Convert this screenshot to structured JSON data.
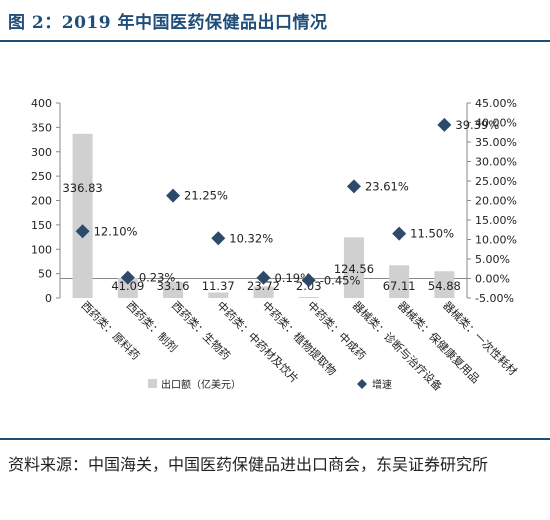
{
  "figure": {
    "title": "图 2：2019 年中国医药保健品出口情况"
  },
  "source_note": "资料来源：中国海关，中国医药保健品进出口商会，东吴证券研究所",
  "colors": {
    "title": "#1f4e79",
    "bar": "#d0d0d0",
    "marker": "#2e4a6b",
    "axis": "#888888",
    "text": "#222222"
  },
  "chart_data": {
    "type": "bar",
    "categories": [
      "西药类：原料药",
      "西药类：制剂",
      "西药类：生物药",
      "中药类：中药材及饮片",
      "中药类：植物提取物",
      "中药类：中成药",
      "器械类：诊断与治疗设备",
      "器械类：保健康复用品",
      "器械类：一次性耗材"
    ],
    "series": [
      {
        "name": "出口额（亿美元）",
        "type": "bar",
        "axis": "left",
        "values": [
          336.83,
          41.09,
          33.16,
          11.37,
          23.72,
          2.03,
          124.56,
          67.11,
          54.88
        ],
        "labels": [
          "336.83",
          "41.09",
          "33.16",
          "11.37",
          "23.72",
          "2.03",
          "124.56",
          "67.11",
          "54.88"
        ]
      },
      {
        "name": "增速",
        "type": "scatter",
        "marker": "diamond",
        "axis": "right",
        "values": [
          12.1,
          0.23,
          21.25,
          10.32,
          0.19,
          -0.45,
          23.61,
          11.5,
          39.39
        ],
        "labels": [
          "12.10%",
          "0.23%",
          "21.25%",
          "10.32%",
          "0.19%",
          "-0.45%",
          "23.61%",
          "11.50%",
          "39.39%"
        ]
      }
    ],
    "y_left": {
      "ylim": [
        0,
        400
      ],
      "ticks": [
        "0",
        "50",
        "100",
        "150",
        "200",
        "250",
        "300",
        "350",
        "400"
      ]
    },
    "y_right": {
      "ylim": [
        -5,
        45
      ],
      "ticks": [
        "-5.00%",
        "0.00%",
        "5.00%",
        "10.00%",
        "15.00%",
        "20.00%",
        "25.00%",
        "30.00%",
        "35.00%",
        "40.00%",
        "45.00%"
      ]
    },
    "legend": {
      "position": "bottom",
      "items": [
        "出口额（亿美元）",
        "增速"
      ]
    },
    "grid": false
  }
}
